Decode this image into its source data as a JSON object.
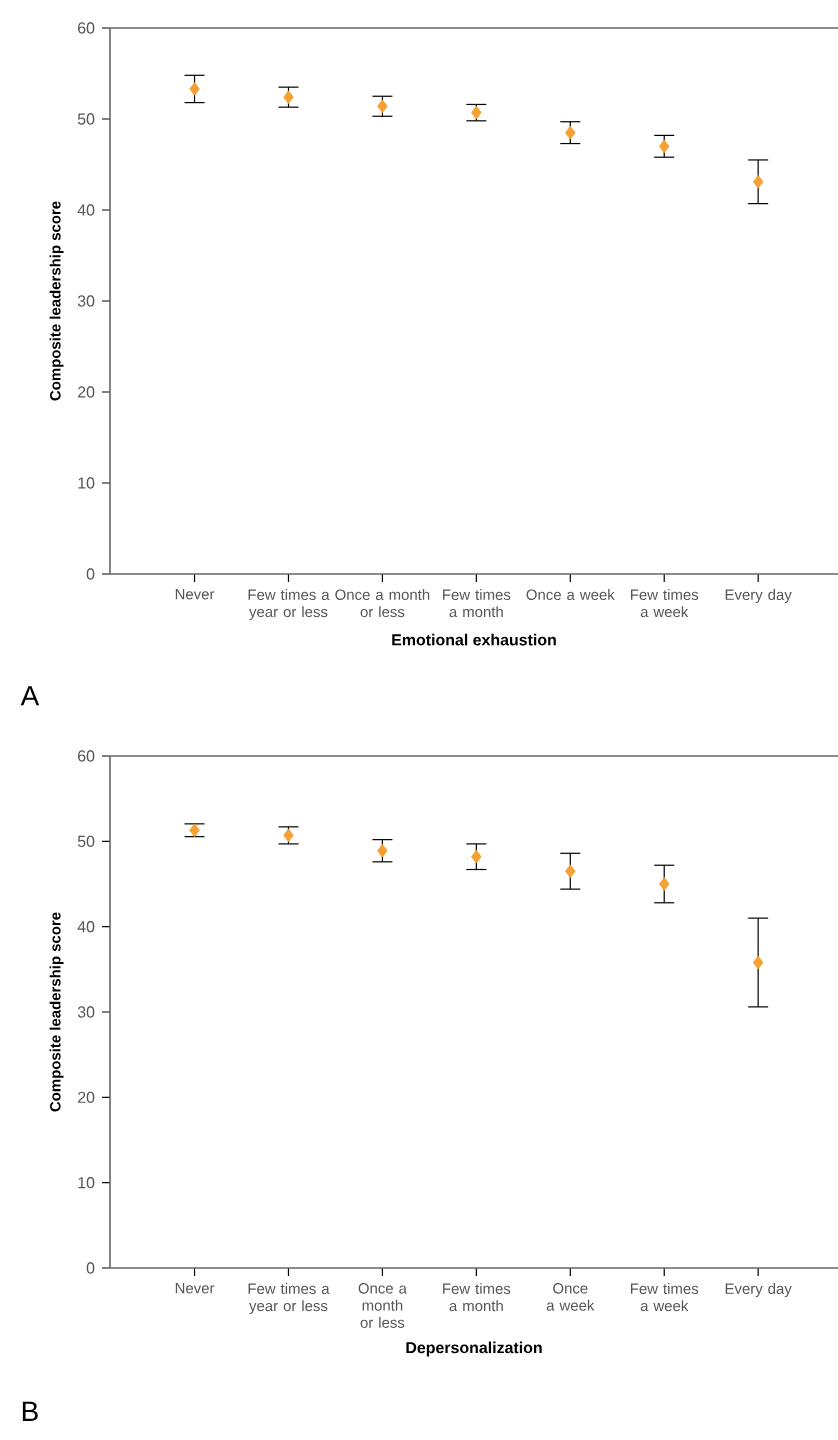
{
  "chart_data": [
    {
      "type": "scatter",
      "xlabel": "Emotional exhaustion",
      "ylabel": "Composite leadership score",
      "annotations": [
        "A"
      ],
      "categories": [
        "Never",
        "Few times a year or less",
        "Once a month or less",
        "Few times a month",
        "Once a week",
        "Few times a week",
        "Every day"
      ],
      "series": [
        {
          "color": "#f5a033",
          "values": [
            53.3,
            52.4,
            51.4,
            50.7,
            48.5,
            47.0,
            43.1
          ],
          "errors": [
            1.5,
            1.1,
            1.1,
            0.9,
            1.2,
            1.2,
            2.4
          ]
        }
      ],
      "marker": "diamond",
      "ylim": [
        0,
        60
      ],
      "yticks": [
        0,
        10,
        20,
        30,
        40,
        50,
        60
      ]
    },
    {
      "type": "scatter",
      "xlabel": "Depersonalization",
      "ylabel": "Composite leadership score",
      "annotations": [
        "B"
      ],
      "categories": [
        "Never",
        "Few times a year or less",
        "Once a month or less",
        "Few times a month",
        "Once a week",
        "Few times a week",
        "Every day"
      ],
      "series": [
        {
          "color": "#f5a033",
          "values": [
            51.3,
            50.7,
            48.9,
            48.2,
            46.5,
            45.0,
            35.8
          ],
          "errors": [
            0.75,
            1.0,
            1.3,
            1.5,
            2.1,
            2.2,
            5.2
          ]
        }
      ],
      "marker": "diamond",
      "ylim": [
        0,
        60
      ],
      "yticks": [
        0,
        10,
        20,
        30,
        40,
        50,
        60
      ]
    }
  ]
}
